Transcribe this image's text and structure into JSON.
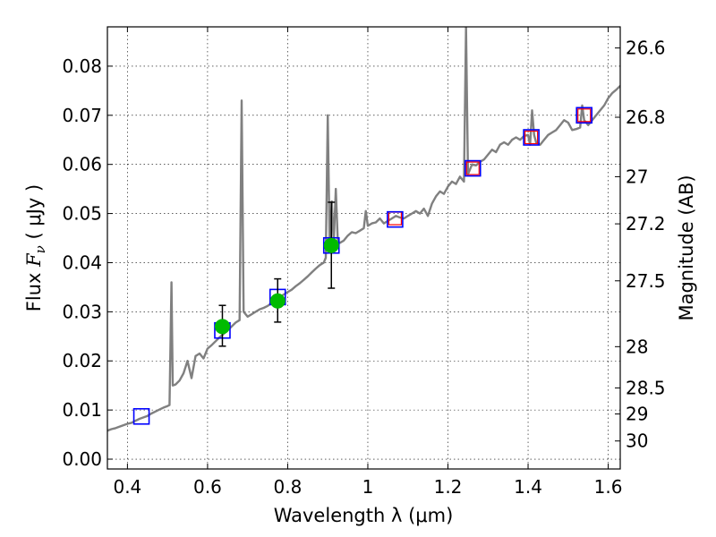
{
  "chart_data": {
    "type": "scatter",
    "xlabel": "Wavelength  λ (μm)",
    "ylabel": {
      "prefix": "Flux  ",
      "symbol": "F",
      "subscript": "ν",
      "units": "  ( μJy )"
    },
    "y2label": "Magnitude (AB)",
    "xlim": [
      0.35,
      1.63
    ],
    "ylim": [
      -0.002,
      0.088
    ],
    "x_ticks": [
      0.4,
      0.6,
      0.8,
      1.0,
      1.2,
      1.4,
      1.6
    ],
    "x_tick_labels": [
      "0.4",
      "0.6",
      "0.8",
      "1",
      "1.2",
      "1.4",
      "1.6"
    ],
    "y_ticks": [
      0.0,
      0.01,
      0.02,
      0.03,
      0.04,
      0.05,
      0.06,
      0.07,
      0.08
    ],
    "y_tick_labels": [
      "0.00",
      "0.01",
      "0.02",
      "0.03",
      "0.04",
      "0.05",
      "0.06",
      "0.07",
      "0.08"
    ],
    "y2_ticks": [
      {
        "label": "26.6",
        "flux": 0.0837
      },
      {
        "label": "26.8",
        "flux": 0.0696
      },
      {
        "label": "27",
        "flux": 0.0575
      },
      {
        "label": "27.2",
        "flux": 0.0479
      },
      {
        "label": "27.5",
        "flux": 0.0363
      },
      {
        "label": "28",
        "flux": 0.0229
      },
      {
        "label": "28.5",
        "flux": 0.0145
      },
      {
        "label": "29",
        "flux": 0.0092
      },
      {
        "label": "30",
        "flux": 0.0037
      }
    ],
    "grid": true,
    "colors": {
      "sed": "#808080",
      "model_box": "#0000ff",
      "observed_box": "#ff0000",
      "detection": "#00bb00",
      "errorbar": "#000000"
    },
    "series": [
      {
        "kind": "sed_model_line",
        "points": [
          [
            0.35,
            0.0058
          ],
          [
            0.36,
            0.0061
          ],
          [
            0.37,
            0.0063
          ],
          [
            0.38,
            0.0066
          ],
          [
            0.39,
            0.0069
          ],
          [
            0.4,
            0.0072
          ],
          [
            0.41,
            0.0074
          ],
          [
            0.42,
            0.0078
          ],
          [
            0.43,
            0.0082
          ],
          [
            0.44,
            0.0085
          ],
          [
            0.45,
            0.0088
          ],
          [
            0.46,
            0.0093
          ],
          [
            0.47,
            0.0097
          ],
          [
            0.48,
            0.0101
          ],
          [
            0.49,
            0.0105
          ],
          [
            0.5,
            0.0108
          ],
          [
            0.505,
            0.011
          ],
          [
            0.51,
            0.036
          ],
          [
            0.513,
            0.015
          ],
          [
            0.52,
            0.0152
          ],
          [
            0.53,
            0.016
          ],
          [
            0.54,
            0.0175
          ],
          [
            0.55,
            0.02
          ],
          [
            0.56,
            0.0165
          ],
          [
            0.57,
            0.021
          ],
          [
            0.58,
            0.0215
          ],
          [
            0.59,
            0.0205
          ],
          [
            0.6,
            0.0225
          ],
          [
            0.61,
            0.0232
          ],
          [
            0.62,
            0.024
          ],
          [
            0.63,
            0.0248
          ],
          [
            0.64,
            0.0255
          ],
          [
            0.65,
            0.0262
          ],
          [
            0.66,
            0.027
          ],
          [
            0.67,
            0.0278
          ],
          [
            0.68,
            0.0283
          ],
          [
            0.685,
            0.073
          ],
          [
            0.69,
            0.03
          ],
          [
            0.7,
            0.029
          ],
          [
            0.71,
            0.0295
          ],
          [
            0.72,
            0.03
          ],
          [
            0.73,
            0.0305
          ],
          [
            0.74,
            0.0308
          ],
          [
            0.75,
            0.0312
          ],
          [
            0.76,
            0.0318
          ],
          [
            0.77,
            0.0322
          ],
          [
            0.78,
            0.033
          ],
          [
            0.79,
            0.0335
          ],
          [
            0.8,
            0.034
          ],
          [
            0.81,
            0.0345
          ],
          [
            0.82,
            0.0352
          ],
          [
            0.83,
            0.0358
          ],
          [
            0.84,
            0.0365
          ],
          [
            0.85,
            0.0372
          ],
          [
            0.86,
            0.038
          ],
          [
            0.87,
            0.0388
          ],
          [
            0.88,
            0.0395
          ],
          [
            0.89,
            0.04
          ],
          [
            0.895,
            0.041
          ],
          [
            0.9,
            0.07
          ],
          [
            0.905,
            0.043
          ],
          [
            0.91,
            0.0525
          ],
          [
            0.915,
            0.044
          ],
          [
            0.92,
            0.055
          ],
          [
            0.925,
            0.0445
          ],
          [
            0.93,
            0.044
          ],
          [
            0.94,
            0.0445
          ],
          [
            0.95,
            0.0455
          ],
          [
            0.96,
            0.0462
          ],
          [
            0.97,
            0.046
          ],
          [
            0.98,
            0.0465
          ],
          [
            0.99,
            0.047
          ],
          [
            0.995,
            0.0505
          ],
          [
            1.0,
            0.0475
          ],
          [
            1.01,
            0.048
          ],
          [
            1.02,
            0.0482
          ],
          [
            1.03,
            0.049
          ],
          [
            1.04,
            0.048
          ],
          [
            1.05,
            0.0485
          ],
          [
            1.06,
            0.049
          ],
          [
            1.07,
            0.0495
          ],
          [
            1.08,
            0.0492
          ],
          [
            1.09,
            0.049
          ],
          [
            1.1,
            0.0495
          ],
          [
            1.11,
            0.05
          ],
          [
            1.12,
            0.0505
          ],
          [
            1.13,
            0.05
          ],
          [
            1.14,
            0.051
          ],
          [
            1.15,
            0.0495
          ],
          [
            1.16,
            0.052
          ],
          [
            1.17,
            0.0535
          ],
          [
            1.18,
            0.0545
          ],
          [
            1.19,
            0.054
          ],
          [
            1.2,
            0.0555
          ],
          [
            1.21,
            0.0565
          ],
          [
            1.22,
            0.056
          ],
          [
            1.23,
            0.0575
          ],
          [
            1.24,
            0.0565
          ],
          [
            1.245,
            0.088
          ],
          [
            1.25,
            0.058
          ],
          [
            1.26,
            0.06
          ],
          [
            1.27,
            0.0598
          ],
          [
            1.28,
            0.0605
          ],
          [
            1.29,
            0.061
          ],
          [
            1.3,
            0.062
          ],
          [
            1.31,
            0.063
          ],
          [
            1.32,
            0.0625
          ],
          [
            1.33,
            0.064
          ],
          [
            1.34,
            0.0645
          ],
          [
            1.35,
            0.064
          ],
          [
            1.36,
            0.065
          ],
          [
            1.37,
            0.0655
          ],
          [
            1.38,
            0.065
          ],
          [
            1.39,
            0.0658
          ],
          [
            1.4,
            0.066
          ],
          [
            1.405,
            0.064
          ],
          [
            1.41,
            0.071
          ],
          [
            1.415,
            0.066
          ],
          [
            1.42,
            0.0645
          ],
          [
            1.43,
            0.064
          ],
          [
            1.44,
            0.065
          ],
          [
            1.45,
            0.066
          ],
          [
            1.46,
            0.0665
          ],
          [
            1.47,
            0.067
          ],
          [
            1.48,
            0.068
          ],
          [
            1.49,
            0.069
          ],
          [
            1.5,
            0.0685
          ],
          [
            1.51,
            0.067
          ],
          [
            1.52,
            0.0672
          ],
          [
            1.53,
            0.0675
          ],
          [
            1.535,
            0.072
          ],
          [
            1.54,
            0.069
          ],
          [
            1.55,
            0.068
          ],
          [
            1.56,
            0.069
          ],
          [
            1.57,
            0.07
          ],
          [
            1.58,
            0.071
          ],
          [
            1.59,
            0.072
          ],
          [
            1.6,
            0.0735
          ],
          [
            1.61,
            0.0745
          ],
          [
            1.62,
            0.0752
          ],
          [
            1.63,
            0.076
          ]
        ]
      },
      {
        "kind": "model_band_flux_boxes",
        "points": [
          [
            0.435,
            0.0087
          ],
          [
            0.637,
            0.0262
          ],
          [
            0.775,
            0.033
          ],
          [
            0.909,
            0.0435
          ],
          [
            1.068,
            0.0488
          ],
          [
            1.262,
            0.0592
          ],
          [
            1.408,
            0.0655
          ],
          [
            1.54,
            0.07
          ]
        ]
      },
      {
        "kind": "observed_upper_boxes",
        "points": [
          [
            1.068,
            0.049
          ],
          [
            1.262,
            0.0592
          ],
          [
            1.408,
            0.0655
          ],
          [
            1.54,
            0.07
          ]
        ]
      },
      {
        "kind": "detections_with_errors",
        "points": [
          {
            "x": 0.637,
            "y": 0.027,
            "yerr_low": 0.004,
            "yerr_high": 0.0043
          },
          {
            "x": 0.775,
            "y": 0.0322,
            "yerr_low": 0.0043,
            "yerr_high": 0.0045
          },
          {
            "x": 0.909,
            "y": 0.0435,
            "yerr_low": 0.0087,
            "yerr_high": 0.0088
          }
        ]
      }
    ]
  }
}
